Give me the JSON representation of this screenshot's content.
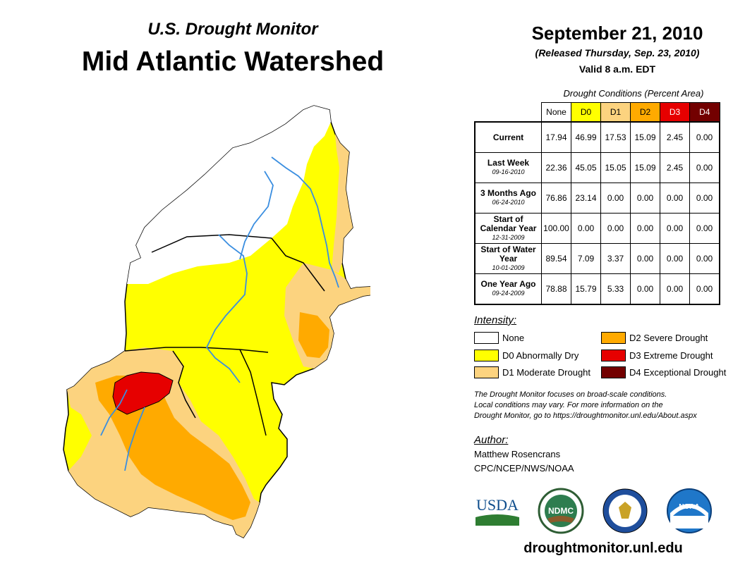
{
  "header": {
    "subtitle": "U.S. Drought Monitor",
    "title": "Mid Atlantic Watershed",
    "date": "September 21, 2010",
    "released": "(Released Thursday, Sep. 23, 2010)",
    "valid": "Valid 8 a.m. EDT"
  },
  "table": {
    "caption": "Drought Conditions (Percent Area)",
    "columns": [
      "None",
      "D0",
      "D1",
      "D2",
      "D3",
      "D4"
    ],
    "column_colors": [
      "#ffffff",
      "#ffff00",
      "#fcd37f",
      "#ffaa00",
      "#e60000",
      "#730000"
    ],
    "rows": [
      {
        "label": "Current",
        "date": "",
        "values": [
          "17.94",
          "46.99",
          "17.53",
          "15.09",
          "2.45",
          "0.00"
        ]
      },
      {
        "label": "Last Week",
        "date": "09-16-2010",
        "values": [
          "22.36",
          "45.05",
          "15.05",
          "15.09",
          "2.45",
          "0.00"
        ]
      },
      {
        "label": "3 Months Ago",
        "date": "06-24-2010",
        "values": [
          "76.86",
          "23.14",
          "0.00",
          "0.00",
          "0.00",
          "0.00"
        ]
      },
      {
        "label": "Start of Calendar Year",
        "date": "12-31-2009",
        "values": [
          "100.00",
          "0.00",
          "0.00",
          "0.00",
          "0.00",
          "0.00"
        ]
      },
      {
        "label": "Start of Water Year",
        "date": "10-01-2009",
        "values": [
          "89.54",
          "7.09",
          "3.37",
          "0.00",
          "0.00",
          "0.00"
        ]
      },
      {
        "label": "One Year Ago",
        "date": "09-24-2009",
        "values": [
          "78.88",
          "15.79",
          "5.33",
          "0.00",
          "0.00",
          "0.00"
        ]
      }
    ]
  },
  "legend": {
    "title": "Intensity:",
    "items": [
      {
        "label": "None",
        "color": "#ffffff"
      },
      {
        "label": "D0 Abnormally Dry",
        "color": "#ffff00"
      },
      {
        "label": "D1 Moderate Drought",
        "color": "#fcd37f"
      },
      {
        "label": "D2 Severe Drought",
        "color": "#ffaa00"
      },
      {
        "label": "D3 Extreme Drought",
        "color": "#e60000"
      },
      {
        "label": "D4 Exceptional Drought",
        "color": "#730000"
      }
    ]
  },
  "note": {
    "line1": "The Drought Monitor focuses on broad-scale conditions.",
    "line2": "Local conditions may vary. For more information on the",
    "line3": "Drought Monitor, go to https://droughtmonitor.unl.edu/About.aspx"
  },
  "author": {
    "title": "Author:",
    "name": "Matthew Rosencrans",
    "org": "CPC/NCEP/NWS/NOAA"
  },
  "logos": {
    "usda": "USDA",
    "ndmc": "NDMC",
    "noaa": "NOAA"
  },
  "website": "droughtmonitor.unl.edu"
}
